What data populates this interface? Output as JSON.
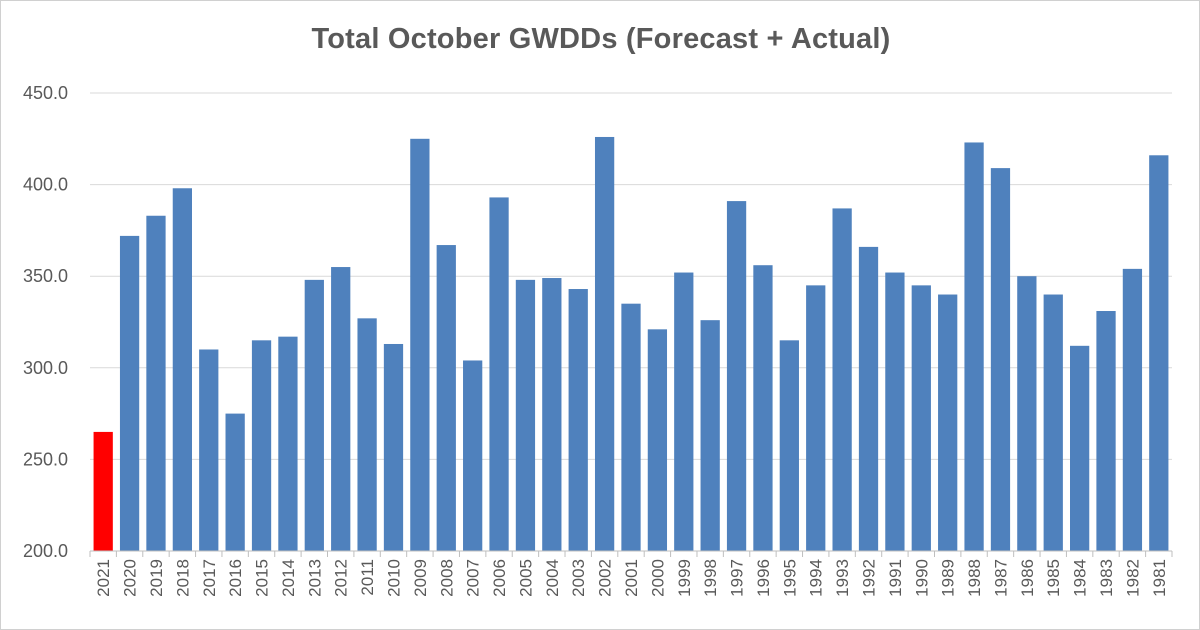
{
  "chart_data": {
    "type": "bar",
    "title": "Total October GWDDs (Forecast + Actual)",
    "xlabel": "",
    "ylabel": "",
    "ylim": [
      200,
      450
    ],
    "yticks": [
      "200.0",
      "250.0",
      "300.0",
      "350.0",
      "400.0",
      "450.0"
    ],
    "grid": true,
    "legend": "none",
    "categories": [
      "2021",
      "2020",
      "2019",
      "2018",
      "2017",
      "2016",
      "2015",
      "2014",
      "2013",
      "2012",
      "2011",
      "2010",
      "2009",
      "2008",
      "2007",
      "2006",
      "2005",
      "2004",
      "2003",
      "2002",
      "2001",
      "2000",
      "1999",
      "1998",
      "1997",
      "1996",
      "1995",
      "1994",
      "1993",
      "1992",
      "1991",
      "1990",
      "1989",
      "1988",
      "1987",
      "1986",
      "1985",
      "1984",
      "1983",
      "1982",
      "1981"
    ],
    "values": [
      265,
      372,
      383,
      398,
      310,
      275,
      315,
      317,
      348,
      355,
      327,
      313,
      425,
      367,
      304,
      393,
      348,
      349,
      343,
      426,
      335,
      321,
      352,
      326,
      391,
      356,
      315,
      345,
      387,
      366,
      352,
      345,
      340,
      423,
      409,
      350,
      340,
      312,
      331,
      354,
      416
    ],
    "highlight_category": "2021",
    "colors": {
      "bar": "#4f81bd",
      "highlight": "#ff0000",
      "grid": "#d9d9d9",
      "axis": "#bfbfbf",
      "text": "#595959"
    }
  }
}
